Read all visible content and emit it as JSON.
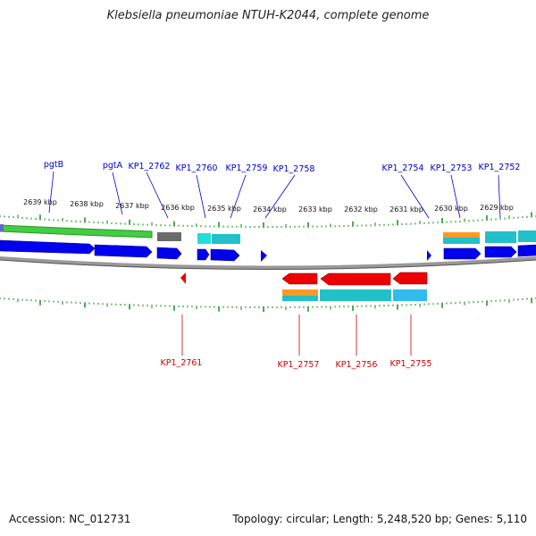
{
  "title": "Klebsiella pneumoniae NTUH-K2044, complete genome",
  "accession": "Accession: NC_012731",
  "summary": "Topology: circular; Length: 5,248,520 bp; Genes: 5,110",
  "ticks": [
    "2639 kbp",
    "2638 kbp",
    "2637 kbp",
    "2636 kbp",
    "2635 kbp",
    "2634 kbp",
    "2633 kbp",
    "2632 kbp",
    "2631 kbp",
    "2630 kbp",
    "2629 kbp"
  ],
  "top_labels": [
    "pgtB",
    "pgtA",
    "KP1_2762",
    "KP1_2760",
    "KP1_2759",
    "KP1_2758",
    "KP1_2754",
    "KP1_2753",
    "KP1_2752"
  ],
  "bottom_labels": [
    "KP1_2761",
    "KP1_2757",
    "KP1_2756",
    "KP1_2755"
  ],
  "colors": {
    "forward_gene": "#0000ee",
    "reverse_gene": "#ee0000",
    "backbone": "#888888",
    "tick": "#008800",
    "label_forward": "#0000cc",
    "label_reverse": "#cc0000",
    "feature_green": "#44cc44",
    "feature_grey": "#666666",
    "feature_cyan": "#22cccc",
    "feature_orange": "#ff9900"
  }
}
